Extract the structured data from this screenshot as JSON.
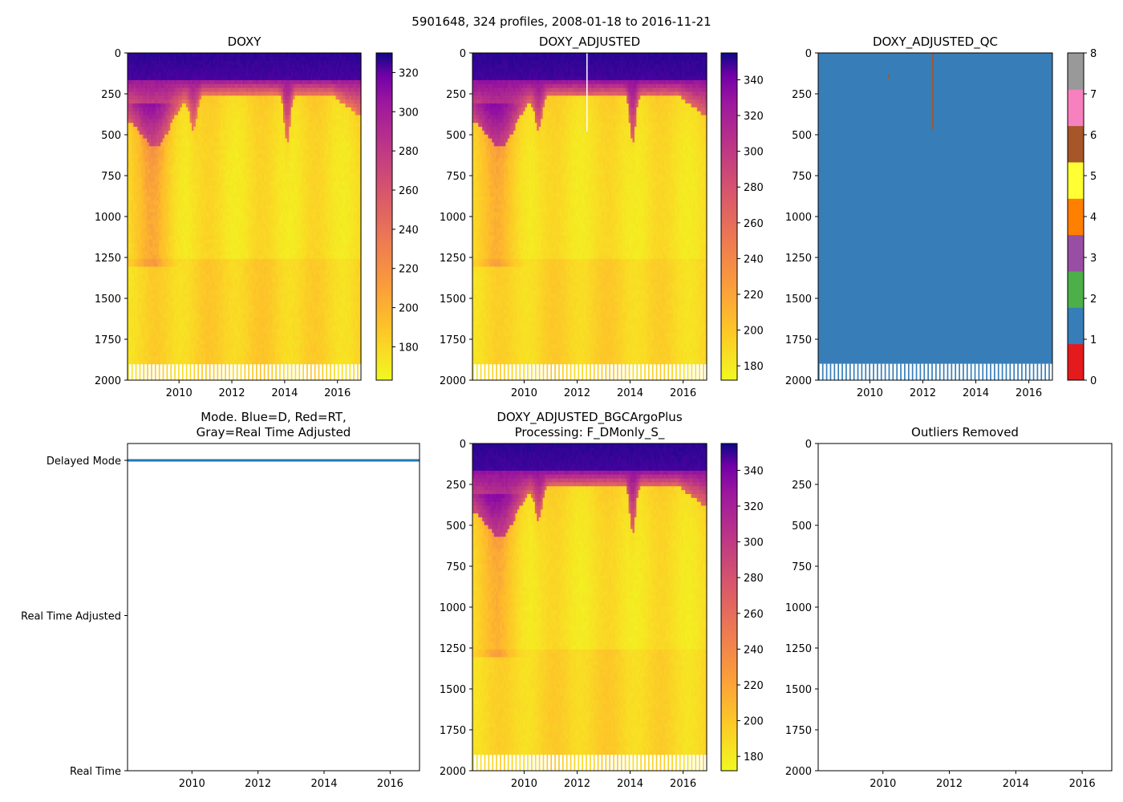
{
  "figure_title": "5901648, 324 profiles, 2008-01-18 to 2016-11-21",
  "chart_data": [
    {
      "id": "doxy",
      "type": "heatmap",
      "title": "DOXY",
      "ylim": [
        2000,
        0
      ],
      "yticks": [
        0,
        250,
        500,
        750,
        1000,
        1250,
        1500,
        1750,
        2000
      ],
      "xlim": [
        2008.05,
        2016.89
      ],
      "xticks": [
        2010,
        2012,
        2014,
        2016
      ],
      "colormap": "plasma_r",
      "colorbar": {
        "range": [
          163,
          330
        ],
        "ticks": [
          180,
          200,
          220,
          240,
          260,
          280,
          300,
          320
        ]
      },
      "low_oxygen_events": [
        {
          "year": 2008.05,
          "depth": 300
        },
        {
          "year": 2009.4,
          "depth": 700
        },
        {
          "year": 2010.55,
          "depth": 480
        },
        {
          "year": 2014.0,
          "depth": 600
        }
      ],
      "surface_value": 320,
      "deep_value": 180
    },
    {
      "id": "doxy-adjusted",
      "type": "heatmap",
      "title": "DOXY_ADJUSTED",
      "ylim": [
        2000,
        0
      ],
      "yticks": [
        0,
        250,
        500,
        750,
        1000,
        1250,
        1500,
        1750,
        2000
      ],
      "xlim": [
        2008.05,
        2016.89
      ],
      "xticks": [
        2010,
        2012,
        2014,
        2016
      ],
      "colormap": "plasma_r",
      "colorbar": {
        "range": [
          172,
          355
        ],
        "ticks": [
          180,
          200,
          220,
          240,
          260,
          280,
          300,
          320,
          340
        ]
      },
      "gap_year": 2012.35,
      "gap_depth": 480,
      "surface_value": 345,
      "deep_value": 190
    },
    {
      "id": "doxy-adjusted-qc",
      "type": "heatmap",
      "title": "DOXY_ADJUSTED_QC",
      "ylim": [
        2000,
        0
      ],
      "yticks": [
        0,
        250,
        500,
        750,
        1000,
        1250,
        1500,
        1750,
        2000
      ],
      "xlim": [
        2008.05,
        2016.89
      ],
      "xticks": [
        2010,
        2012,
        2014,
        2016
      ],
      "colormap": "qc_flags",
      "colorbar": {
        "range": [
          0,
          8
        ],
        "ticks": [
          0,
          1,
          2,
          3,
          4,
          5,
          6,
          7,
          8
        ],
        "flag_colors": [
          "#e41a1c",
          "#377eb8",
          "#4daf4a",
          "#984ea3",
          "#ff7f00",
          "#ffff33",
          "#a65628",
          "#f781bf",
          "#999999"
        ]
      },
      "dominant_flag": 1,
      "anomalies": [
        {
          "year": 2012.35,
          "depth_top": 0,
          "depth_bottom": 470,
          "flag": 6
        },
        {
          "year": 2010.7,
          "depth_top": 130,
          "depth_bottom": 160,
          "flag": 6
        }
      ]
    },
    {
      "id": "mode",
      "type": "line",
      "title": "Mode. Blue=D, Red=RT,\nGray=Real Time Adjusted",
      "title_lines": [
        "Mode. Blue=D, Red=RT,",
        "Gray=Real Time Adjusted"
      ],
      "ytick_labels": [
        "Delayed Mode",
        "Real Time Adjusted",
        "Real Time"
      ],
      "ylim": [
        0,
        2
      ],
      "xlim": [
        2008.05,
        2016.89
      ],
      "xticks": [
        2010,
        2012,
        2014,
        2016
      ],
      "series": [
        {
          "name": "Delayed Mode",
          "color": "#1f77b4",
          "x": [
            2008.05,
            2016.89
          ],
          "y": [
            2,
            2
          ]
        }
      ]
    },
    {
      "id": "doxy-bgcargoplus",
      "type": "heatmap",
      "title": "DOXY_ADJUSTED_BGCArgoPlus\nProcessing: F_DMonly_S_",
      "title_lines": [
        "DOXY_ADJUSTED_BGCArgoPlus",
        "Processing: F_DMonly_S_"
      ],
      "ylim": [
        2000,
        0
      ],
      "yticks": [
        0,
        250,
        500,
        750,
        1000,
        1250,
        1500,
        1750,
        2000
      ],
      "xlim": [
        2008.05,
        2016.89
      ],
      "xticks": [
        2010,
        2012,
        2014,
        2016
      ],
      "colormap": "plasma_r",
      "colorbar": {
        "range": [
          172,
          355
        ],
        "ticks": [
          180,
          200,
          220,
          240,
          260,
          280,
          300,
          320,
          340
        ]
      },
      "surface_value": 345,
      "deep_value": 190
    },
    {
      "id": "outliers",
      "type": "scatter",
      "title": "Outliers Removed",
      "ylim": [
        2000,
        0
      ],
      "yticks": [
        0,
        250,
        500,
        750,
        1000,
        1250,
        1500,
        1750,
        2000
      ],
      "xlim": [
        2008.05,
        2016.89
      ],
      "xticks": [
        2010,
        2012,
        2014,
        2016
      ],
      "points": []
    }
  ]
}
